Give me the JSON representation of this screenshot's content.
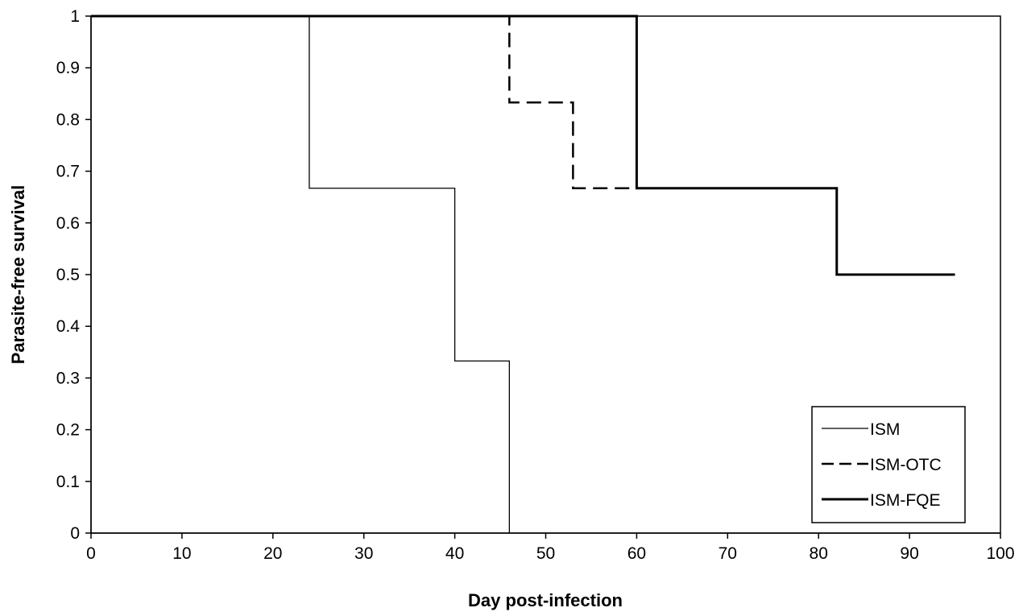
{
  "chart_data": {
    "type": "line",
    "xlabel": "Day post-infection",
    "ylabel": "Parasite-free survival",
    "xlim": [
      0,
      100
    ],
    "ylim": [
      0,
      1
    ],
    "xticks": [
      0,
      10,
      20,
      30,
      40,
      50,
      60,
      70,
      80,
      90,
      100
    ],
    "yticks": [
      0,
      0.1,
      0.2,
      0.3,
      0.4,
      0.5,
      0.6,
      0.7,
      0.8,
      0.9,
      1
    ],
    "grid": false,
    "legend_position": "bottom-right",
    "step": true,
    "series": [
      {
        "name": "ISM",
        "style": "thin-solid",
        "x": [
          0,
          24,
          40,
          46
        ],
        "y": [
          1,
          0.667,
          0.333,
          0
        ]
      },
      {
        "name": "ISM-OTC",
        "style": "dashed",
        "x": [
          0,
          46,
          53,
          60
        ],
        "y": [
          1,
          0.833,
          0.667,
          0.667
        ]
      },
      {
        "name": "ISM-FQE",
        "style": "thick-solid",
        "x": [
          0,
          60,
          82,
          95
        ],
        "y": [
          1,
          0.667,
          0.5,
          0.5
        ]
      }
    ]
  }
}
